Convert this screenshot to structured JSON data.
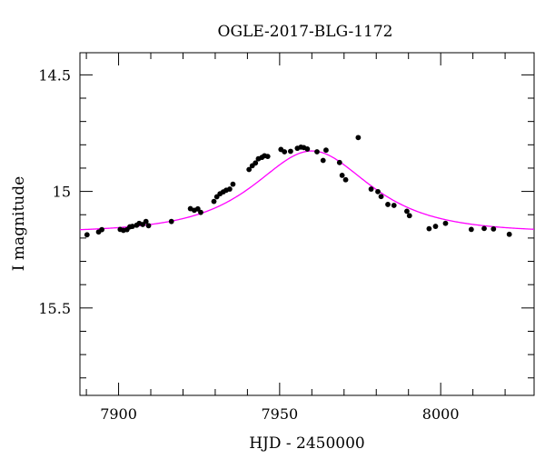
{
  "chart_data": {
    "type": "scatter",
    "title": "OGLE-2017-BLG-1172",
    "xlabel": "HJD - 2450000",
    "ylabel": "I magnitude",
    "xlim": [
      7888,
      8029
    ],
    "ylim": [
      15.875,
      14.405
    ],
    "y_inverted": true,
    "grid": false,
    "x_major_ticks": [
      7900,
      7950,
      8000
    ],
    "x_tick_labels": [
      "7900",
      "7950",
      "8000"
    ],
    "x_minor_step": 10,
    "y_major_ticks": [
      14.5,
      15.0,
      15.5
    ],
    "y_tick_labels": [
      "14.5",
      "15",
      "15.5"
    ],
    "y_minor_step": 0.1,
    "colors": {
      "points": "#000000",
      "model": "#ff00ff",
      "axes": "#000000"
    },
    "series": [
      {
        "type": "scatter",
        "points": [
          [
            7890.2,
            15.186
          ],
          [
            7893.8,
            15.174
          ],
          [
            7894.8,
            15.164
          ],
          [
            7900.5,
            15.163
          ],
          [
            7901.5,
            15.167
          ],
          [
            7902.6,
            15.164
          ],
          [
            7903.5,
            15.152
          ],
          [
            7904.3,
            15.15
          ],
          [
            7905.6,
            15.145
          ],
          [
            7906.4,
            15.137
          ],
          [
            7907.5,
            15.142
          ],
          [
            7908.5,
            15.129
          ],
          [
            7909.3,
            15.147
          ],
          [
            7916.4,
            15.129
          ],
          [
            7922.3,
            15.074
          ],
          [
            7923.5,
            15.081
          ],
          [
            7924.6,
            15.075
          ],
          [
            7925.5,
            15.09
          ],
          [
            7929.6,
            15.043
          ],
          [
            7930.5,
            15.023
          ],
          [
            7931.5,
            15.01
          ],
          [
            7932.5,
            15.002
          ],
          [
            7933.4,
            14.995
          ],
          [
            7934.5,
            14.99
          ],
          [
            7935.5,
            14.969
          ],
          [
            7940.5,
            14.906
          ],
          [
            7941.5,
            14.89
          ],
          [
            7942.5,
            14.878
          ],
          [
            7943.4,
            14.86
          ],
          [
            7944.5,
            14.854
          ],
          [
            7945.3,
            14.847
          ],
          [
            7946.3,
            14.85
          ],
          [
            7950.4,
            14.82
          ],
          [
            7951.5,
            14.83
          ],
          [
            7953.4,
            14.828
          ],
          [
            7955.5,
            14.815
          ],
          [
            7956.6,
            14.81
          ],
          [
            7957.5,
            14.812
          ],
          [
            7958.6,
            14.818
          ],
          [
            7961.6,
            14.83
          ],
          [
            7963.5,
            14.867
          ],
          [
            7964.4,
            14.823
          ],
          [
            7968.6,
            14.876
          ],
          [
            7969.4,
            14.931
          ],
          [
            7970.5,
            14.95
          ],
          [
            7974.4,
            14.769
          ],
          [
            7978.4,
            14.99
          ],
          [
            7980.5,
            15.001
          ],
          [
            7981.5,
            15.022
          ],
          [
            7983.6,
            15.056
          ],
          [
            7985.5,
            15.06
          ],
          [
            7989.5,
            15.085
          ],
          [
            7990.3,
            15.104
          ],
          [
            7996.4,
            15.16
          ],
          [
            7998.4,
            15.15
          ],
          [
            8001.5,
            15.137
          ],
          [
            8009.5,
            15.163
          ],
          [
            8013.5,
            15.159
          ],
          [
            8016.4,
            15.161
          ],
          [
            8021.3,
            15.184
          ]
        ]
      },
      {
        "type": "line",
        "model": "pspl",
        "baseline_mag": 15.176,
        "t0": 7960.0,
        "tE": 22.0,
        "u0": 0.95
      }
    ]
  }
}
